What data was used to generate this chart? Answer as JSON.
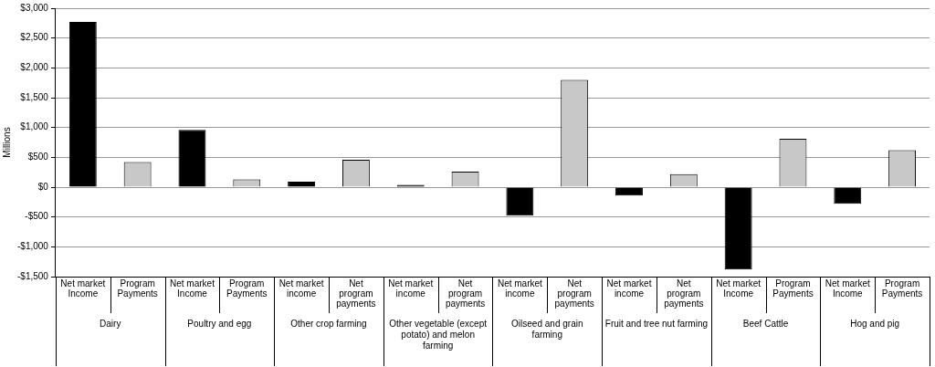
{
  "chart_data": {
    "type": "bar",
    "ylabel": "Millions",
    "categories": [
      "Net market Income",
      "Program Payments",
      "Net market Income",
      "Program Payments",
      "Net market income",
      "Net program payments",
      "Net market income",
      "Net program payments",
      "Net market income",
      "Net program payments",
      "Net market income",
      "Net program payments",
      "Net market Income",
      "Program Payments",
      "Net market Income",
      "Program Payments"
    ],
    "values": [
      2770,
      420,
      960,
      130,
      90,
      460,
      40,
      260,
      -480,
      1800,
      -140,
      220,
      -1380,
      810,
      -280,
      620
    ],
    "colors": [
      "#000000",
      "#c8c8c8",
      "#000000",
      "#c8c8c8",
      "#000000",
      "#c8c8c8",
      "#000000",
      "#c8c8c8",
      "#000000",
      "#c8c8c8",
      "#000000",
      "#c8c8c8",
      "#000000",
      "#c8c8c8",
      "#000000",
      "#c8c8c8"
    ],
    "ylim": [
      -1500,
      3000
    ],
    "yticks": [
      {
        "value": -1500,
        "label": "-$1,500"
      },
      {
        "value": -1000,
        "label": "-$1,000"
      },
      {
        "value": -500,
        "label": "-$500"
      },
      {
        "value": 0,
        "label": "$0"
      },
      {
        "value": 500,
        "label": "$500"
      },
      {
        "value": 1000,
        "label": "$1,000"
      },
      {
        "value": 1500,
        "label": "$1,500"
      },
      {
        "value": 2000,
        "label": "$2,000"
      },
      {
        "value": 2500,
        "label": "$2,500"
      },
      {
        "value": 3000,
        "label": "$3,000"
      }
    ],
    "annotations": [
      "Dairy",
      "Poultry and egg",
      "Other crop farming",
      "Other vegetable (except potato) and melon farming",
      "Oilseed and grain farming",
      "Fruit and tree nut farming",
      "Beef Cattle",
      "Hog and pig"
    ],
    "grid": "y",
    "legend": false
  }
}
